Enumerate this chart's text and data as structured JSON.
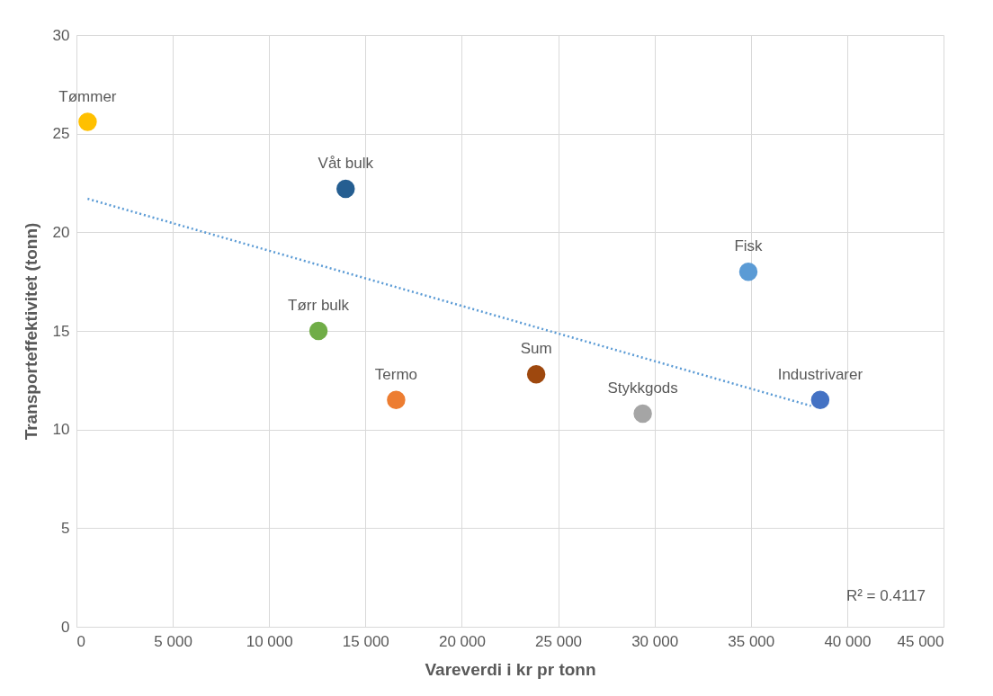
{
  "chart_data": {
    "type": "scatter",
    "xlabel": "Vareverdi i kr pr tonn",
    "ylabel": "Transporteffektivitet (tonn)",
    "xlim": [
      0,
      45000
    ],
    "xticks": [
      0,
      {
        "value": 5000,
        "label": "5 000"
      },
      {
        "value": 10000,
        "label": "10 000"
      },
      {
        "value": 15000,
        "label": "15 000"
      },
      {
        "value": 20000,
        "label": "20 000"
      },
      {
        "value": 25000,
        "label": "25 000"
      },
      {
        "value": 30000,
        "label": "30 000"
      },
      {
        "value": 35000,
        "label": "35 000"
      },
      {
        "value": 40000,
        "label": "40 000"
      },
      {
        "value": 45000,
        "label": "45 000"
      }
    ],
    "ylim": [
      0,
      30
    ],
    "yticks": [
      0,
      5,
      10,
      15,
      20,
      25,
      30
    ],
    "grid": true,
    "marker": "circle",
    "series": [
      {
        "name": "Tømmer",
        "color": "#ffc000",
        "x": [
          580
        ],
        "values": [
          25.6
        ]
      },
      {
        "name": "Våt bulk",
        "color": "#255e91",
        "x": [
          13970
        ],
        "values": [
          22.2
        ]
      },
      {
        "name": "Tørr bulk",
        "color": "#70ad47",
        "x": [
          12560
        ],
        "values": [
          15.0
        ]
      },
      {
        "name": "Termo",
        "color": "#ed7d31",
        "x": [
          16590
        ],
        "values": [
          11.5
        ]
      },
      {
        "name": "Sum",
        "color": "#9e480e",
        "x": [
          23860
        ],
        "values": [
          12.8
        ]
      },
      {
        "name": "Stykkgods",
        "color": "#a5a5a5",
        "x": [
          29390
        ],
        "values": [
          10.8
        ]
      },
      {
        "name": "Fisk",
        "color": "#5b9bd5",
        "x": [
          34870
        ],
        "values": [
          18.0
        ]
      },
      {
        "name": "Industrivarer",
        "color": "#4472c4",
        "x": [
          38600
        ],
        "values": [
          11.5
        ]
      },
      {
        "type": "line",
        "color": "#5b9bd5",
        "line_style": "dotted",
        "marker": "none",
        "x": [
          580,
          38120
        ],
        "values": [
          21.7,
          11.2
        ]
      }
    ],
    "annotations": [
      "R² = 0.4117"
    ]
  }
}
